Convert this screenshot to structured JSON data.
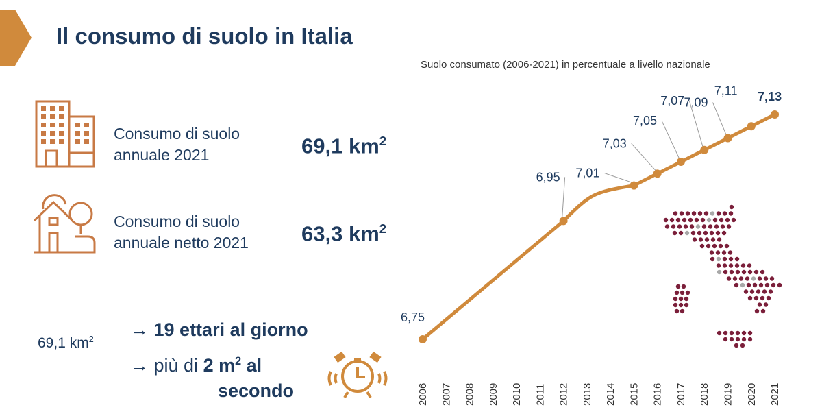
{
  "slide": {
    "title": "Il consumo di suolo in Italia",
    "stats": [
      {
        "label_line1": "Consumo di suolo",
        "label_line2": "annuale 2021",
        "value": "69,1 km",
        "sup": "2",
        "icon": "buildings-icon"
      },
      {
        "label_line1": "Consumo di suolo",
        "label_line2": "annuale netto 2021",
        "value": "63,3 km",
        "sup": "2",
        "icon": "house-tree-icon"
      }
    ],
    "equivalence": {
      "base": "69,1 km",
      "base_sup": "2",
      "arrow": "→",
      "line1": "19 ettari al giorno",
      "line2_prefix": "più di ",
      "line2_bold": "2 m",
      "line2_sup": "2",
      "line2_suffix": " al",
      "line3": "secondo",
      "icon": "alarm-clock-icon"
    }
  },
  "colors": {
    "accent": "#d08a3c",
    "icon": "#c87a45",
    "text": "#1f3b5e",
    "map_dot": "#7b1f3a",
    "map_gray": "#a8a8a8"
  },
  "chart_data": {
    "type": "line",
    "title": "Suolo consumato (2006-2021) in percentuale a livello nazionale",
    "x": [
      "2006",
      "2007",
      "2008",
      "2009",
      "2010",
      "2011",
      "2012",
      "2013",
      "2014",
      "2015",
      "2016",
      "2017",
      "2018",
      "2019",
      "2020",
      "2021"
    ],
    "points": [
      {
        "year": 2006,
        "value": 6.75,
        "label": "6,75"
      },
      {
        "year": 2012,
        "value": 6.95,
        "label": "6,95"
      },
      {
        "year": 2015,
        "value": 7.01,
        "label": "7,01"
      },
      {
        "year": 2016,
        "value": 7.03,
        "label": "7,03"
      },
      {
        "year": 2017,
        "value": 7.05,
        "label": "7,05"
      },
      {
        "year": 2018,
        "value": 7.07,
        "label": "7,07"
      },
      {
        "year": 2019,
        "value": 7.09,
        "label": "7,09"
      },
      {
        "year": 2020,
        "value": 7.11,
        "label": "7,11"
      },
      {
        "year": 2021,
        "value": 7.13,
        "label": "7,13"
      }
    ],
    "xlabel": "",
    "ylabel": "",
    "ylim": [
      6.75,
      7.13
    ],
    "grid": false,
    "legend": "none"
  }
}
